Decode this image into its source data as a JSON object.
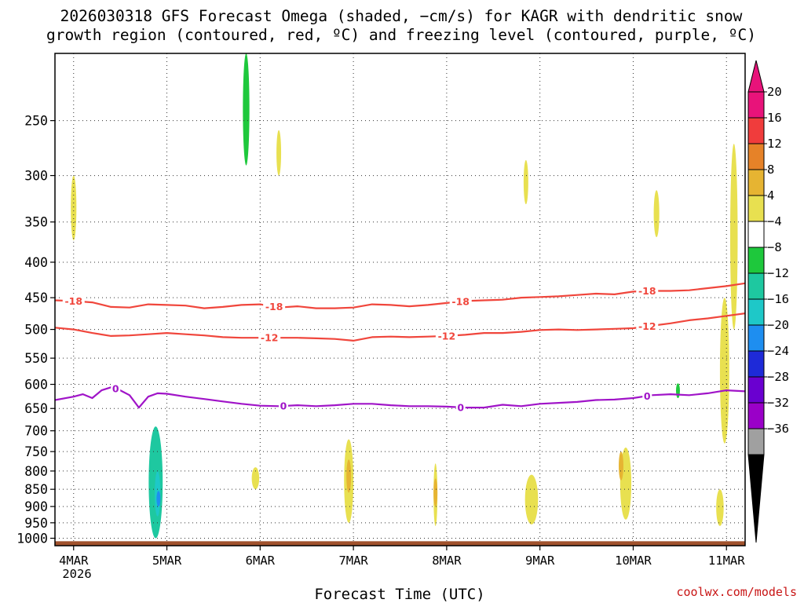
{
  "chart_data": {
    "type": "heatmap",
    "title_line1": "2026030318 GFS Forecast Omega (shaded, −cm/s) for KAGR with dendritic snow",
    "title_line2": "growth region (contoured, red, ºC) and freezing level (contoured, purple, ºC)",
    "xlabel": "Forecast Time (UTC)",
    "credit": "coolwx.com/models",
    "x_ticks": [
      "4MAR",
      "5MAR",
      "6MAR",
      "7MAR",
      "8MAR",
      "9MAR",
      "10MAR",
      "11MAR"
    ],
    "x_year": "2026",
    "x_range_days": [
      -0.2,
      7.2
    ],
    "y_ticks": [
      250,
      300,
      350,
      400,
      450,
      500,
      550,
      600,
      650,
      700,
      750,
      800,
      850,
      900,
      950,
      1000
    ],
    "y_range_hpa": [
      200,
      1025
    ],
    "y_scale": "log-pressure (inverted)",
    "colorbar": {
      "levels": [
        -36,
        -32,
        -28,
        -24,
        -20,
        -16,
        -12,
        -8,
        -4,
        4,
        8,
        12,
        16,
        20
      ],
      "colors": [
        "#a0a0a0",
        "#9a00c8",
        "#6a00d0",
        "#1e2ad8",
        "#1e8ef0",
        "#1ec8c8",
        "#1ec8a0",
        "#1ec83c",
        "#ffffff",
        "#e8e050",
        "#e6b432",
        "#e68228",
        "#f03c3c",
        "#e8137a"
      ],
      "under_color": "#000000",
      "over_color": "#e8137a"
    },
    "contours": [
      {
        "name": "-18 °C isotherm",
        "color": "#f0463c",
        "label": "-18",
        "x": [
          -0.2,
          0.0,
          0.2,
          0.4,
          0.6,
          0.8,
          1.0,
          1.2,
          1.4,
          1.6,
          1.8,
          2.0,
          2.2,
          2.4,
          2.6,
          2.8,
          3.0,
          3.2,
          3.4,
          3.6,
          3.8,
          4.0,
          4.2,
          4.4,
          4.6,
          4.8,
          5.0,
          5.2,
          5.4,
          5.6,
          5.8,
          6.0,
          6.2,
          6.4,
          6.6,
          6.8,
          7.0,
          7.2
        ],
        "y": [
          454,
          455,
          457,
          464,
          465,
          460,
          461,
          462,
          466,
          464,
          461,
          460,
          465,
          463,
          466,
          466,
          465,
          460,
          461,
          463,
          461,
          458,
          455,
          454,
          453,
          450,
          449,
          448,
          446,
          444,
          445,
          441,
          440,
          440,
          439,
          436,
          433,
          429
        ],
        "label_x": [
          0.0,
          2.15,
          4.15,
          6.15
        ]
      },
      {
        "name": "-12 °C isotherm",
        "color": "#f0463c",
        "label": "-12",
        "x": [
          -0.2,
          0.0,
          0.2,
          0.4,
          0.6,
          0.8,
          1.0,
          1.2,
          1.4,
          1.6,
          1.8,
          2.0,
          2.2,
          2.4,
          2.6,
          2.8,
          3.0,
          3.2,
          3.4,
          3.6,
          3.8,
          4.0,
          4.2,
          4.4,
          4.6,
          4.8,
          5.0,
          5.2,
          5.4,
          5.6,
          5.8,
          6.0,
          6.2,
          6.4,
          6.6,
          6.8,
          7.0,
          7.2
        ],
        "y": [
          497,
          500,
          506,
          511,
          510,
          508,
          506,
          508,
          510,
          513,
          514,
          514,
          514,
          514,
          515,
          516,
          519,
          513,
          512,
          513,
          512,
          511,
          509,
          506,
          506,
          504,
          501,
          500,
          501,
          500,
          499,
          498,
          494,
          490,
          485,
          482,
          478,
          474
        ],
        "label_x": [
          2.1,
          4.0,
          6.15
        ]
      },
      {
        "name": "0 °C freezing level",
        "color": "#a014c8",
        "label": "0",
        "x": [
          -0.2,
          0.0,
          0.1,
          0.2,
          0.3,
          0.4,
          0.5,
          0.6,
          0.7,
          0.8,
          0.9,
          1.0,
          1.2,
          1.4,
          1.6,
          1.8,
          2.0,
          2.2,
          2.4,
          2.6,
          2.8,
          3.0,
          3.2,
          3.4,
          3.6,
          3.8,
          4.0,
          4.2,
          4.4,
          4.6,
          4.8,
          5.0,
          5.2,
          5.4,
          5.6,
          5.8,
          6.0,
          6.2,
          6.4,
          6.6,
          6.8,
          7.0,
          7.2
        ],
        "y": [
          632,
          625,
          620,
          628,
          612,
          606,
          612,
          622,
          648,
          625,
          618,
          619,
          625,
          630,
          635,
          640,
          644,
          645,
          643,
          645,
          643,
          640,
          640,
          643,
          645,
          645,
          646,
          648,
          648,
          642,
          645,
          640,
          638,
          636,
          632,
          631,
          628,
          622,
          620,
          622,
          618,
          612,
          614
        ],
        "label_x": [
          0.45,
          2.25,
          4.15,
          6.15
        ]
      }
    ],
    "shaded_regions": [
      {
        "name": "snow-growth-upper-lift",
        "value": 5,
        "cx": 0.0,
        "top": 300,
        "bottom": 372,
        "width": 0.06
      },
      {
        "name": "strong-rise-core-5mar",
        "value": -10,
        "cx": 0.88,
        "top": 690,
        "bottom": 1000,
        "width": 0.15
      },
      {
        "name": "rise-inner-5mar",
        "value": -14,
        "cx": 0.9,
        "top": 800,
        "bottom": 930,
        "width": 0.06
      },
      {
        "name": "rise-center-5mar",
        "value": -18,
        "cx": 0.91,
        "top": 855,
        "bottom": 900,
        "width": 0.03
      },
      {
        "name": "lift-early-6mar",
        "value": 6,
        "cx": 1.95,
        "top": 790,
        "bottom": 850,
        "width": 0.08
      },
      {
        "name": "rise-aloft-6mar",
        "value": -6,
        "cx": 1.85,
        "top": 200,
        "bottom": 290,
        "width": 0.07
      },
      {
        "name": "lift-aloft-6mar",
        "value": 5,
        "cx": 2.2,
        "top": 258,
        "bottom": 300,
        "width": 0.05
      },
      {
        "name": "lift-6-7mar",
        "value": 7,
        "cx": 2.95,
        "top": 720,
        "bottom": 950,
        "width": 0.1
      },
      {
        "name": "lift-core-7mar",
        "value": 9,
        "cx": 2.95,
        "top": 770,
        "bottom": 860,
        "width": 0.05
      },
      {
        "name": "lift-8mar",
        "value": 7,
        "cx": 3.88,
        "top": 780,
        "bottom": 960,
        "width": 0.04
      },
      {
        "name": "lift-core-8mar",
        "value": 9,
        "cx": 3.88,
        "top": 820,
        "bottom": 900,
        "width": 0.02
      },
      {
        "name": "lift-9mar",
        "value": 5,
        "cx": 4.91,
        "top": 810,
        "bottom": 955,
        "width": 0.14
      },
      {
        "name": "lift-10mar",
        "value": 6,
        "cx": 5.92,
        "top": 740,
        "bottom": 940,
        "width": 0.12
      },
      {
        "name": "lift-core-10mar",
        "value": 10,
        "cx": 5.87,
        "top": 750,
        "bottom": 825,
        "width": 0.05
      },
      {
        "name": "lift-aloft-9mar",
        "value": 5,
        "cx": 4.85,
        "top": 285,
        "bottom": 330,
        "width": 0.05
      },
      {
        "name": "lift-aloft-10mar",
        "value": 5,
        "cx": 6.25,
        "top": 315,
        "bottom": 368,
        "width": 0.06
      },
      {
        "name": "lift-11mar",
        "value": 6,
        "cx": 6.98,
        "top": 450,
        "bottom": 730,
        "width": 0.1
      },
      {
        "name": "lift-11mar-upper",
        "value": 5,
        "cx": 7.08,
        "top": 270,
        "bottom": 500,
        "width": 0.08
      },
      {
        "name": "lift-low-11mar",
        "value": 5,
        "cx": 6.93,
        "top": 850,
        "bottom": 960,
        "width": 0.08
      },
      {
        "name": "rise-10mar-mid",
        "value": -6,
        "cx": 6.48,
        "top": 598,
        "bottom": 628,
        "width": 0.04
      }
    ],
    "ground": {
      "name": "terrain",
      "color": "#a0522d",
      "top_hpa": 1010
    }
  }
}
